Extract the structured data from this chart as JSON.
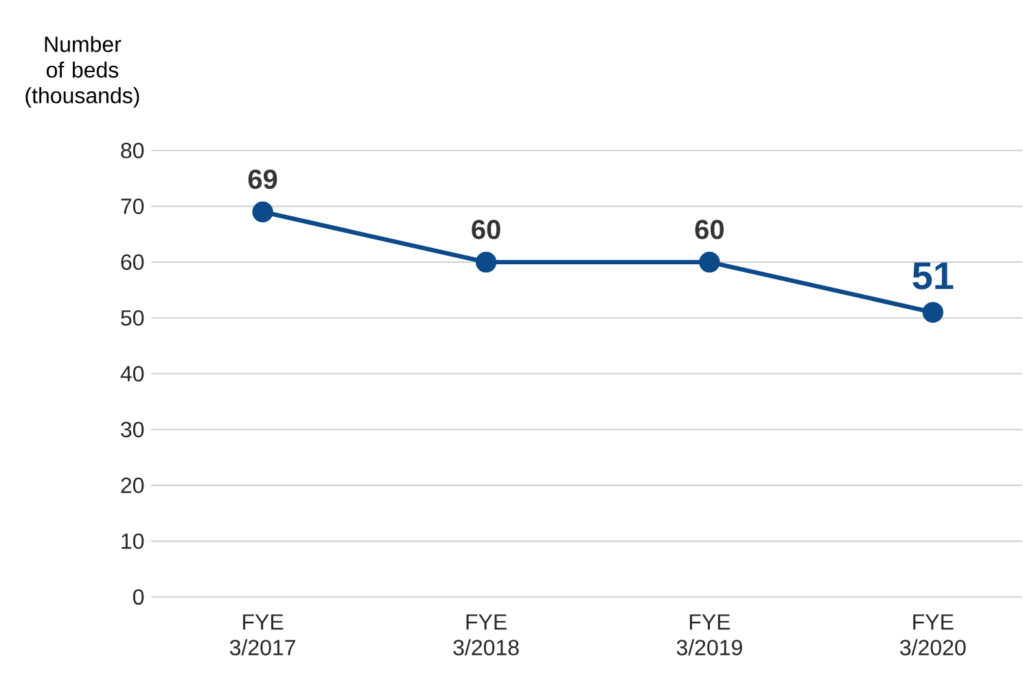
{
  "chart_data": {
    "type": "line",
    "ylabel": "Number of beds (thousands)",
    "categories": [
      "FYE 3/2017",
      "FYE 3/2018",
      "FYE 3/2019",
      "FYE 3/2020"
    ],
    "series": [
      {
        "color": "#0d4a8a",
        "values": [
          69,
          60,
          60,
          51
        ]
      }
    ],
    "ylim": [
      0,
      80
    ],
    "yticks": [
      0,
      10,
      20,
      30,
      40,
      50,
      60,
      70,
      80
    ],
    "grid": "y",
    "marker": "circle",
    "line_style": "solid",
    "data_labels": true
  }
}
